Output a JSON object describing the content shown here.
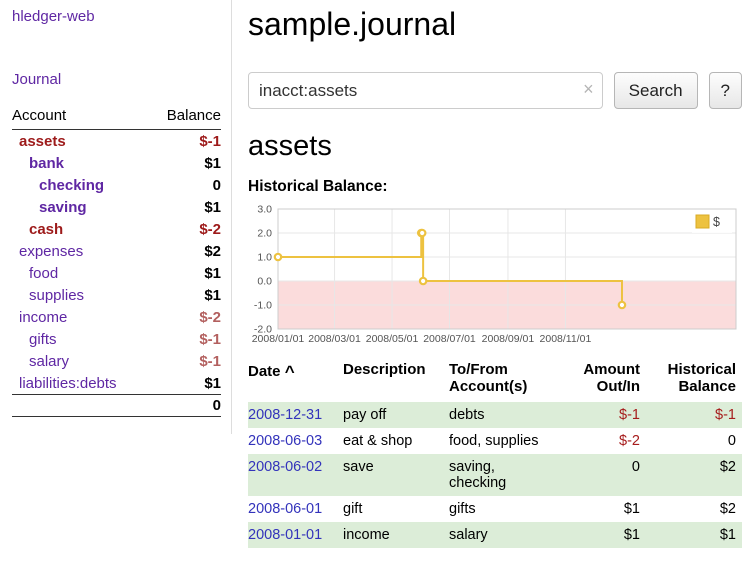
{
  "colors": {
    "purple": "#5f27a3",
    "red_strong": "#9d1a1a",
    "red": "#a61c1c",
    "red_muted": "#b3605f",
    "link_blue": "#3333bb",
    "row_green": "#dcedd8",
    "chart_line": "#edc240",
    "chart_negative_fill": "#fbdcdc",
    "axis_text": "#545454"
  },
  "sidebar": {
    "app_link": "hledger-web",
    "journal_link": "Journal",
    "accounts": {
      "headers": {
        "account": "Account",
        "balance": "Balance"
      },
      "rows": [
        {
          "name": "assets",
          "indent": 0,
          "bold": true,
          "name_color": "red",
          "balance": "$-1",
          "balance_color": "red"
        },
        {
          "name": "bank",
          "indent": 1,
          "bold": true,
          "name_color": "purple",
          "balance": "$1",
          "balance_color": "black"
        },
        {
          "name": "checking",
          "indent": 2,
          "bold": true,
          "name_color": "purple",
          "balance": "0",
          "balance_color": "black"
        },
        {
          "name": "saving",
          "indent": 2,
          "bold": true,
          "name_color": "purple",
          "balance": "$1",
          "balance_color": "black"
        },
        {
          "name": "cash",
          "indent": 1,
          "bold": true,
          "name_color": "red",
          "balance": "$-2",
          "balance_color": "red"
        },
        {
          "name": "expenses",
          "indent": 0,
          "bold": false,
          "name_color": "purple",
          "balance": "$2",
          "balance_color": "black"
        },
        {
          "name": "food",
          "indent": 1,
          "bold": false,
          "name_color": "purple",
          "balance": "$1",
          "balance_color": "black"
        },
        {
          "name": "supplies",
          "indent": 1,
          "bold": false,
          "name_color": "purple",
          "balance": "$1",
          "balance_color": "black"
        },
        {
          "name": "income",
          "indent": 0,
          "bold": false,
          "name_color": "purple",
          "balance": "$-2",
          "balance_color": "muted-red"
        },
        {
          "name": "gifts",
          "indent": 1,
          "bold": false,
          "name_color": "purple",
          "balance": "$-1",
          "balance_color": "muted-red"
        },
        {
          "name": "salary",
          "indent": 1,
          "bold": false,
          "name_color": "purple",
          "balance": "$-1",
          "balance_color": "muted-red"
        },
        {
          "name": "liabilities:debts",
          "indent": 0,
          "bold": false,
          "name_color": "purple",
          "balance": "$1",
          "balance_color": "black"
        }
      ],
      "total": "0"
    }
  },
  "main": {
    "title": "sample.journal",
    "search": {
      "value": "inacct:assets",
      "clear_icon": "×",
      "button_label": "Search",
      "help_label": "?"
    },
    "account_heading": "assets",
    "chart_title": "Historical Balance:",
    "register": {
      "headers": {
        "date": "Date",
        "sort_icon": "^",
        "description": "Description",
        "account": "To/From Account(s)",
        "amount": "Amount Out/In",
        "balance": "Historical Balance"
      },
      "rows": [
        {
          "date": "2008-12-31",
          "description": "pay off",
          "accounts": "debts",
          "amount": "$-1",
          "amount_negative": true,
          "balance": "$-1",
          "balance_negative": true,
          "shaded": true
        },
        {
          "date": "2008-06-03",
          "description": "eat & shop",
          "accounts": "food, supplies",
          "amount": "$-2",
          "amount_negative": true,
          "balance": "0",
          "balance_negative": false,
          "shaded": false
        },
        {
          "date": "2008-06-02",
          "description": "save",
          "accounts": "saving, checking",
          "amount": "0",
          "amount_negative": false,
          "balance": "$2",
          "balance_negative": false,
          "shaded": true
        },
        {
          "date": "2008-06-01",
          "description": "gift",
          "accounts": "gifts",
          "amount": "$1",
          "amount_negative": false,
          "balance": "$2",
          "balance_negative": false,
          "shaded": false
        },
        {
          "date": "2008-01-01",
          "description": "income",
          "accounts": "salary",
          "amount": "$1",
          "amount_negative": false,
          "balance": "$1",
          "balance_negative": false,
          "shaded": true
        }
      ]
    }
  },
  "chart_data": {
    "type": "line",
    "title": "Historical Balance of assets",
    "step": true,
    "series": [
      {
        "name": "$",
        "color": "#edc240",
        "points": [
          [
            "2008-01-01",
            1
          ],
          [
            "2008-06-01",
            2
          ],
          [
            "2008-06-02",
            2
          ],
          [
            "2008-06-03",
            0
          ],
          [
            "2008-12-31",
            -1
          ]
        ]
      }
    ],
    "ylim": [
      -2.0,
      3.0
    ],
    "yticks": [
      3.0,
      2.0,
      1.0,
      0.0,
      -1.0,
      -2.0
    ],
    "xmin": "2008-01-01",
    "xmax": "2009-05-01",
    "xticks": [
      {
        "date": "2008-01-01",
        "label": "2008/01/01"
      },
      {
        "date": "2008-03-01",
        "label": "2008/03/01"
      },
      {
        "date": "2008-05-01",
        "label": "2008/05/01"
      },
      {
        "date": "2008-07-01",
        "label": "2008/07/01"
      },
      {
        "date": "2008-09-01",
        "label": "2008/09/01"
      },
      {
        "date": "2008-11-01",
        "label": "2008/11/01"
      }
    ],
    "legend": {
      "position": "top-right",
      "label": "$"
    },
    "grid": true,
    "negative_region_shaded": true
  }
}
